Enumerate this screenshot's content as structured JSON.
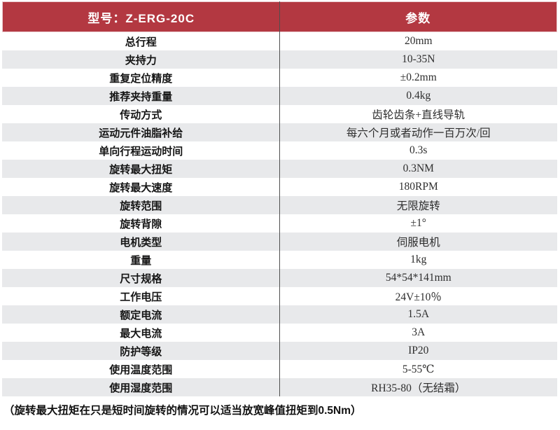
{
  "header": {
    "model_label": "型号：Z-ERG-20C",
    "param_label": "参数"
  },
  "rows": [
    {
      "label": "总行程",
      "value": "20mm"
    },
    {
      "label": "夹持力",
      "value": "10-35N"
    },
    {
      "label": "重复定位精度",
      "value": "±0.2mm"
    },
    {
      "label": "推荐夹持重量",
      "value": "0.4kg"
    },
    {
      "label": "传动方式",
      "value": "齿轮齿条+直线导轨"
    },
    {
      "label": "运动元件油脂补给",
      "value": "每六个月或者动作一百万次/回"
    },
    {
      "label": "单向行程运动时间",
      "value": "0.3s"
    },
    {
      "label": "旋转最大扭矩",
      "value": "0.3NM"
    },
    {
      "label": "旋转最大速度",
      "value": "180RPM"
    },
    {
      "label": "旋转范围",
      "value": "无限旋转"
    },
    {
      "label": "旋转背隙",
      "value": "±1°"
    },
    {
      "label": "电机类型",
      "value": "伺服电机"
    },
    {
      "label": "重量",
      "value": "1kg"
    },
    {
      "label": "尺寸规格",
      "value": "54*54*141mm"
    },
    {
      "label": "工作电压",
      "value": "24V±10％"
    },
    {
      "label": "额定电流",
      "value": "1.5A"
    },
    {
      "label": "最大电流",
      "value": "3A"
    },
    {
      "label": "防护等级",
      "value": "IP20"
    },
    {
      "label": "使用温度范围",
      "value": "5-55℃"
    },
    {
      "label": "使用湿度范围",
      "value": "RH35-80（无结霜）"
    }
  ],
  "footnote": "（旋转最大扭矩在只是短时间旋转的情况可以适当放宽峰值扭矩到0.5Nm）",
  "colors": {
    "header_bg": "#b33841",
    "row_alt_bg": "#e8e9eb",
    "divider": "#4f4f4f",
    "header_text": "#ffffff",
    "body_text": "#2e2e2e"
  }
}
